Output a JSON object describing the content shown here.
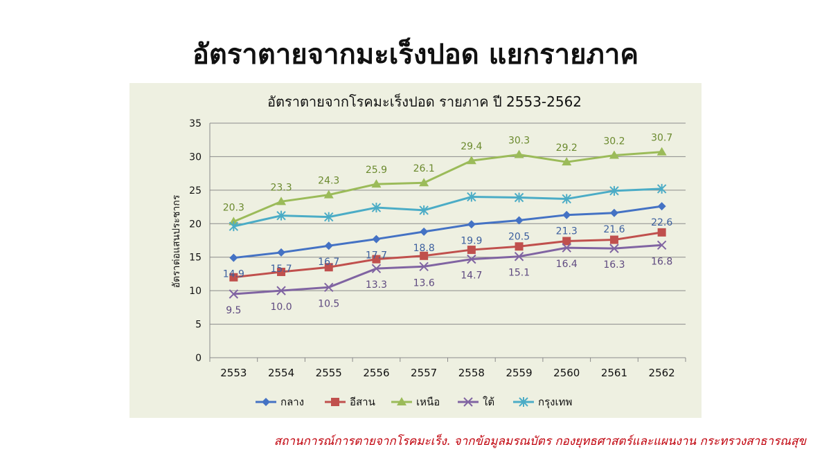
{
  "slide": {
    "title": "อัตราตายจากมะเร็งปอด แยกรายภาค",
    "source": "สถานการณ์การตายจากโรคมะเร็ง. จากข้อมูลมรณบัตร กองยุทธศาสตร์และแผนงาน กระทรวงสาธารณสุข"
  },
  "chart_data": {
    "type": "line",
    "title": "อัตราตายจากโรคมะเร็งปอด รายภาค ปี 2553-2562",
    "xlabel": "",
    "ylabel": "อัตราต่อแสนประชากร",
    "categories": [
      "2553",
      "2554",
      "2555",
      "2556",
      "2557",
      "2558",
      "2559",
      "2560",
      "2561",
      "2562"
    ],
    "ylim": [
      0,
      35
    ],
    "yticks": [
      0,
      5,
      10,
      15,
      20,
      25,
      30,
      35
    ],
    "grid": true,
    "legend": "bottom",
    "series": [
      {
        "name": "กลาง",
        "color": "#4472c4",
        "marker": "diamond",
        "values": [
          14.9,
          15.7,
          16.7,
          17.7,
          18.8,
          19.9,
          20.5,
          21.3,
          21.6,
          22.6
        ],
        "labeled": true,
        "label_pos": "below",
        "label_color": "#3c5f9e"
      },
      {
        "name": "อีสาน",
        "color": "#c0504d",
        "marker": "square",
        "values": [
          12.0,
          12.8,
          13.5,
          14.7,
          15.2,
          16.1,
          16.6,
          17.4,
          17.6,
          18.7
        ],
        "labeled": false
      },
      {
        "name": "เหนือ",
        "color": "#9bbb59",
        "marker": "triangle",
        "values": [
          20.3,
          23.3,
          24.3,
          25.9,
          26.1,
          29.4,
          30.3,
          29.2,
          30.2,
          30.7
        ],
        "labeled": true,
        "label_pos": "above",
        "label_color": "#6b8a2e"
      },
      {
        "name": "ใต้",
        "color": "#8064a2",
        "marker": "x",
        "values": [
          9.5,
          10.0,
          10.5,
          13.3,
          13.6,
          14.7,
          15.1,
          16.4,
          16.3,
          16.8
        ],
        "labeled": true,
        "label_pos": "below",
        "label_color": "#5f4a80"
      },
      {
        "name": "กรุงเทพ",
        "color": "#4bacc6",
        "marker": "star",
        "values": [
          19.6,
          21.2,
          21.0,
          22.4,
          22.0,
          24.0,
          23.9,
          23.7,
          24.9,
          25.2
        ],
        "labeled": false
      }
    ]
  }
}
